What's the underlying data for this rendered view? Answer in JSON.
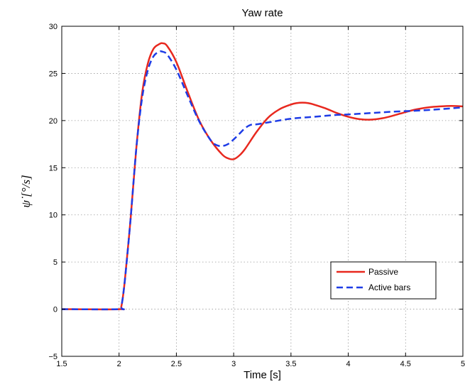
{
  "chart_data": {
    "type": "line",
    "title": "Yaw rate",
    "xlabel": "Time [s]",
    "ylabel": "ψ̇ [°/s]",
    "xlim": [
      1.5,
      5
    ],
    "ylim": [
      -5,
      30
    ],
    "xticks": [
      1.5,
      2,
      2.5,
      3,
      3.5,
      4,
      4.5,
      5
    ],
    "yticks": [
      -5,
      0,
      5,
      10,
      15,
      20,
      25,
      30
    ],
    "xtick_labels": [
      "1.5",
      "2",
      "2.5",
      "3",
      "3.5",
      "4",
      "4.5",
      "5"
    ],
    "ytick_labels": [
      "−5",
      "0",
      "5",
      "10",
      "15",
      "20",
      "25",
      "30"
    ],
    "grid": true,
    "legend_position": "lower-right",
    "series": [
      {
        "name": "Passive",
        "color": "#e8281e",
        "style": "solid",
        "x": [
          1.5,
          2.0,
          2.02,
          2.05,
          2.1,
          2.15,
          2.2,
          2.25,
          2.3,
          2.35,
          2.38,
          2.42,
          2.5,
          2.6,
          2.7,
          2.8,
          2.9,
          2.95,
          3.0,
          3.05,
          3.1,
          3.2,
          3.3,
          3.4,
          3.5,
          3.55,
          3.6,
          3.65,
          3.7,
          3.8,
          3.9,
          4.0,
          4.1,
          4.2,
          4.3,
          4.4,
          4.5,
          4.6,
          4.7,
          4.8,
          4.9,
          5.0
        ],
        "y": [
          0,
          0,
          0.3,
          3.0,
          9.5,
          17.0,
          22.8,
          26.0,
          27.6,
          28.1,
          28.2,
          27.9,
          26.2,
          23.0,
          20.0,
          17.9,
          16.4,
          16.0,
          15.9,
          16.3,
          17.0,
          18.8,
          20.3,
          21.2,
          21.7,
          21.85,
          21.9,
          21.85,
          21.7,
          21.3,
          20.8,
          20.4,
          20.15,
          20.1,
          20.25,
          20.55,
          20.9,
          21.2,
          21.4,
          21.5,
          21.55,
          21.5
        ]
      },
      {
        "name": "Active bars",
        "color": "#1e3ce6",
        "style": "dashed",
        "x": [
          1.5,
          2.0,
          2.02,
          2.05,
          2.1,
          2.15,
          2.2,
          2.25,
          2.3,
          2.35,
          2.38,
          2.42,
          2.5,
          2.6,
          2.7,
          2.8,
          2.85,
          2.9,
          2.95,
          3.0,
          3.05,
          3.1,
          3.15,
          3.2,
          3.3,
          3.5,
          3.7,
          3.9,
          4.0,
          4.2,
          4.4,
          4.6,
          4.8,
          5.0
        ],
        "y": [
          0,
          0,
          0.3,
          3.0,
          9.5,
          17.0,
          22.3,
          25.3,
          26.8,
          27.3,
          27.3,
          27.0,
          25.4,
          22.6,
          19.9,
          17.9,
          17.4,
          17.3,
          17.5,
          18.0,
          18.6,
          19.2,
          19.55,
          19.6,
          19.8,
          20.2,
          20.4,
          20.6,
          20.65,
          20.8,
          20.95,
          21.05,
          21.2,
          21.4
        ]
      }
    ]
  }
}
